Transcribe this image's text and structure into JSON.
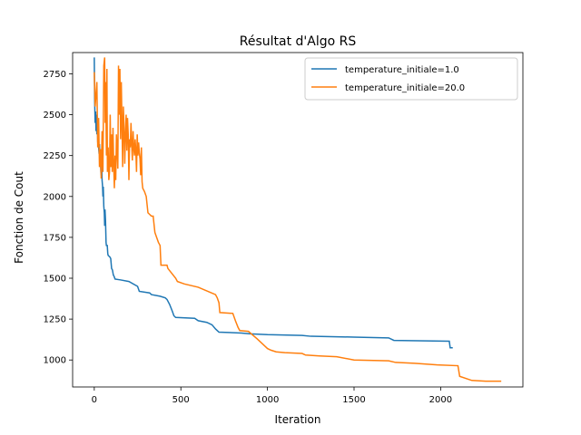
{
  "chart_data": {
    "type": "line",
    "title": "Résultat d'Algo RS",
    "xlabel": "Iteration",
    "ylabel": "Fonction de Cout",
    "xlim": [
      -125,
      2475
    ],
    "ylim": [
      835,
      2880
    ],
    "xticks": [
      0,
      500,
      1000,
      1500,
      2000
    ],
    "yticks": [
      1000,
      1250,
      1500,
      1750,
      2000,
      2250,
      2500,
      2750
    ],
    "legend_position": "top-right",
    "grid": false,
    "series": [
      {
        "name": "temperature_initiale=1.0",
        "color": "#1f77b4",
        "points": [
          [
            0,
            2850
          ],
          [
            2,
            2600
          ],
          [
            5,
            2450
          ],
          [
            8,
            2520
          ],
          [
            10,
            2400
          ],
          [
            12,
            2500
          ],
          [
            15,
            2380
          ],
          [
            18,
            2460
          ],
          [
            20,
            2330
          ],
          [
            22,
            2380
          ],
          [
            25,
            2300
          ],
          [
            28,
            2260
          ],
          [
            30,
            2320
          ],
          [
            32,
            2220
          ],
          [
            35,
            2250
          ],
          [
            38,
            2150
          ],
          [
            40,
            2130
          ],
          [
            43,
            2200
          ],
          [
            45,
            2100
          ],
          [
            48,
            2060
          ],
          [
            50,
            2000
          ],
          [
            52,
            2060
          ],
          [
            55,
            1940
          ],
          [
            58,
            1900
          ],
          [
            60,
            1820
          ],
          [
            62,
            1920
          ],
          [
            65,
            1850
          ],
          [
            68,
            1720
          ],
          [
            70,
            1700
          ],
          [
            75,
            1700
          ],
          [
            78,
            1650
          ],
          [
            80,
            1640
          ],
          [
            90,
            1630
          ],
          [
            95,
            1620
          ],
          [
            100,
            1560
          ],
          [
            105,
            1550
          ],
          [
            110,
            1520
          ],
          [
            115,
            1510
          ],
          [
            120,
            1495
          ],
          [
            150,
            1490
          ],
          [
            200,
            1480
          ],
          [
            250,
            1450
          ],
          [
            260,
            1420
          ],
          [
            320,
            1410
          ],
          [
            330,
            1400
          ],
          [
            380,
            1390
          ],
          [
            410,
            1380
          ],
          [
            420,
            1370
          ],
          [
            435,
            1340
          ],
          [
            450,
            1300
          ],
          [
            460,
            1270
          ],
          [
            470,
            1260
          ],
          [
            580,
            1255
          ],
          [
            600,
            1240
          ],
          [
            650,
            1230
          ],
          [
            680,
            1215
          ],
          [
            700,
            1190
          ],
          [
            720,
            1170
          ],
          [
            850,
            1165
          ],
          [
            900,
            1160
          ],
          [
            1000,
            1155
          ],
          [
            1200,
            1150
          ],
          [
            1250,
            1145
          ],
          [
            1500,
            1140
          ],
          [
            1700,
            1135
          ],
          [
            1730,
            1120
          ],
          [
            2050,
            1115
          ],
          [
            2055,
            1075
          ],
          [
            2070,
            1075
          ]
        ]
      },
      {
        "name": "temperature_initiale=20.0",
        "color": "#ff7f0e",
        "points": [
          [
            0,
            2760
          ],
          [
            5,
            2550
          ],
          [
            10,
            2620
          ],
          [
            15,
            2700
          ],
          [
            20,
            2300
          ],
          [
            25,
            2480
          ],
          [
            30,
            2180
          ],
          [
            35,
            2290
          ],
          [
            40,
            2110
          ],
          [
            45,
            2400
          ],
          [
            50,
            2150
          ],
          [
            55,
            2800
          ],
          [
            60,
            2850
          ],
          [
            63,
            2450
          ],
          [
            66,
            2700
          ],
          [
            70,
            2250
          ],
          [
            73,
            2780
          ],
          [
            76,
            2150
          ],
          [
            80,
            2300
          ],
          [
            84,
            2100
          ],
          [
            88,
            2150
          ],
          [
            92,
            2500
          ],
          [
            96,
            2180
          ],
          [
            100,
            2380
          ],
          [
            104,
            2150
          ],
          [
            108,
            2420
          ],
          [
            112,
            2200
          ],
          [
            116,
            2050
          ],
          [
            120,
            2250
          ],
          [
            124,
            2100
          ],
          [
            128,
            2380
          ],
          [
            132,
            2280
          ],
          [
            136,
            2170
          ],
          [
            140,
            2800
          ],
          [
            144,
            2500
          ],
          [
            148,
            2780
          ],
          [
            152,
            2350
          ],
          [
            156,
            2700
          ],
          [
            160,
            2450
          ],
          [
            164,
            2180
          ],
          [
            168,
            2550
          ],
          [
            172,
            2420
          ],
          [
            176,
            2200
          ],
          [
            180,
            2380
          ],
          [
            184,
            2500
          ],
          [
            188,
            2280
          ],
          [
            192,
            2480
          ],
          [
            196,
            2380
          ],
          [
            200,
            2100
          ],
          [
            204,
            2350
          ],
          [
            208,
            2300
          ],
          [
            212,
            2450
          ],
          [
            216,
            2320
          ],
          [
            220,
            2220
          ],
          [
            224,
            2400
          ],
          [
            228,
            2300
          ],
          [
            232,
            2250
          ],
          [
            236,
            2350
          ],
          [
            240,
            2280
          ],
          [
            244,
            2150
          ],
          [
            248,
            2380
          ],
          [
            252,
            2250
          ],
          [
            256,
            2330
          ],
          [
            260,
            2270
          ],
          [
            264,
            2230
          ],
          [
            268,
            2130
          ],
          [
            272,
            2300
          ],
          [
            276,
            2090
          ],
          [
            280,
            2050
          ],
          [
            290,
            2030
          ],
          [
            300,
            2000
          ],
          [
            310,
            1900
          ],
          [
            320,
            1890
          ],
          [
            330,
            1880
          ],
          [
            340,
            1880
          ],
          [
            350,
            1780
          ],
          [
            360,
            1750
          ],
          [
            370,
            1720
          ],
          [
            380,
            1700
          ],
          [
            385,
            1580
          ],
          [
            420,
            1580
          ],
          [
            425,
            1560
          ],
          [
            440,
            1540
          ],
          [
            470,
            1500
          ],
          [
            480,
            1480
          ],
          [
            520,
            1465
          ],
          [
            600,
            1445
          ],
          [
            700,
            1400
          ],
          [
            710,
            1380
          ],
          [
            720,
            1350
          ],
          [
            725,
            1290
          ],
          [
            800,
            1285
          ],
          [
            815,
            1240
          ],
          [
            830,
            1200
          ],
          [
            840,
            1180
          ],
          [
            890,
            1175
          ],
          [
            940,
            1130
          ],
          [
            1000,
            1070
          ],
          [
            1020,
            1060
          ],
          [
            1050,
            1050
          ],
          [
            1100,
            1045
          ],
          [
            1200,
            1040
          ],
          [
            1220,
            1030
          ],
          [
            1300,
            1025
          ],
          [
            1400,
            1020
          ],
          [
            1500,
            1000
          ],
          [
            1700,
            995
          ],
          [
            1740,
            985
          ],
          [
            1850,
            980
          ],
          [
            1980,
            970
          ],
          [
            2100,
            965
          ],
          [
            2110,
            900
          ],
          [
            2180,
            875
          ],
          [
            2260,
            870
          ],
          [
            2350,
            870
          ]
        ]
      }
    ]
  }
}
